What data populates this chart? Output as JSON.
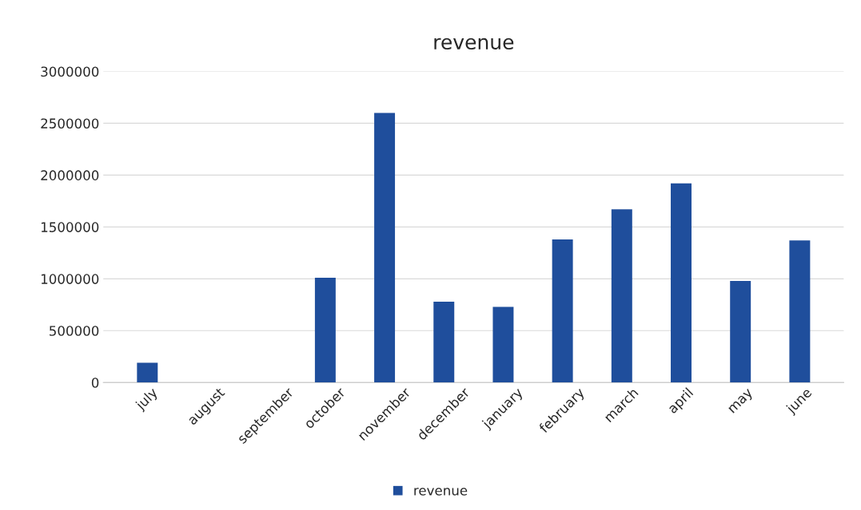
{
  "chart_data": {
    "type": "bar",
    "title": "revenue",
    "categories": [
      "july",
      "august",
      "september",
      "october",
      "november",
      "december",
      "january",
      "february",
      "march",
      "april",
      "may",
      "june"
    ],
    "series": [
      {
        "name": "revenue",
        "color": "#1f4e9c",
        "values": [
          190000,
          null,
          null,
          1010000,
          2600000,
          780000,
          730000,
          1380000,
          1670000,
          1920000,
          980000,
          1370000
        ]
      }
    ],
    "ylim": [
      0,
      3000000
    ],
    "yticks": [
      0,
      500000,
      1000000,
      1500000,
      2000000,
      2500000,
      3000000
    ],
    "grid": "y",
    "legend": "bottom"
  }
}
